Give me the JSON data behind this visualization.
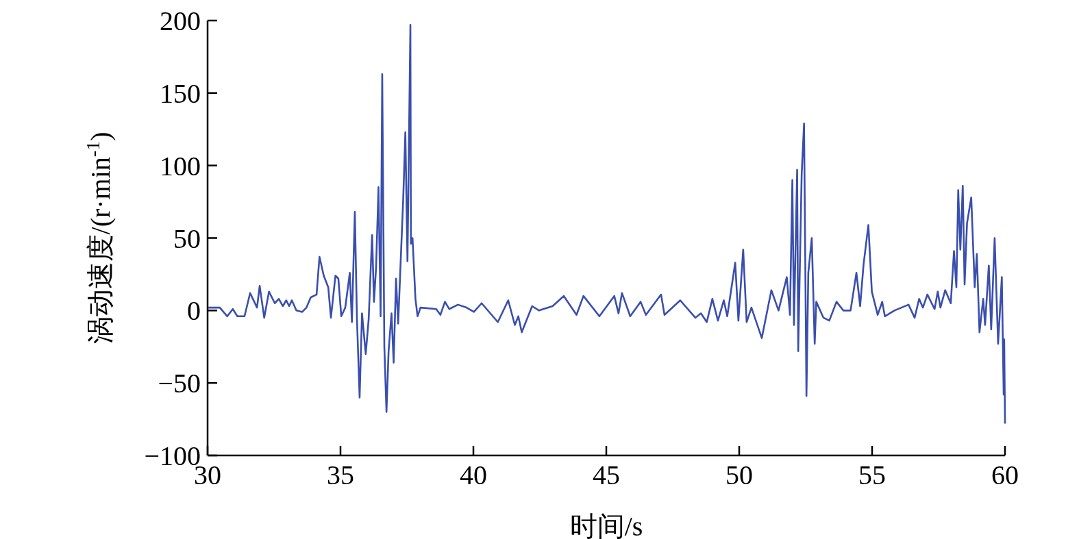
{
  "chart_data": {
    "type": "line",
    "xlabel": "时间/s",
    "ylabel": "涡动速度/(r·min$^{-1}$)",
    "xlim": [
      30,
      60
    ],
    "xticks": [
      30,
      35,
      40,
      45,
      50,
      55,
      60
    ],
    "ylim": [
      -100,
      200
    ],
    "yticks": [
      -100,
      -50,
      0,
      50,
      100,
      150,
      200
    ],
    "series": [
      {
        "color": "#3a4fad",
        "x": [
          30.03,
          30.46,
          30.74,
          30.95,
          31.12,
          31.39,
          31.6,
          31.86,
          31.96,
          32.13,
          32.31,
          32.53,
          32.68,
          32.83,
          32.96,
          33.07,
          33.17,
          33.34,
          33.56,
          33.72,
          33.88,
          34.1,
          34.21,
          34.37,
          34.54,
          34.64,
          34.81,
          34.92,
          35.03,
          35.18,
          35.35,
          35.43,
          35.54,
          35.62,
          35.72,
          35.81,
          35.95,
          36.06,
          36.19,
          36.26,
          36.34,
          36.43,
          36.51,
          36.57,
          36.65,
          36.73,
          36.81,
          36.92,
          37.0,
          37.09,
          37.17,
          37.36,
          37.44,
          37.52,
          37.63,
          37.65,
          37.71,
          37.82,
          37.9,
          38.01,
          38.6,
          38.76,
          38.93,
          39.09,
          39.42,
          39.74,
          40.02,
          40.31,
          40.92,
          41.31,
          41.56,
          41.69,
          41.82,
          42.21,
          42.47,
          42.98,
          43.4,
          43.88,
          44.14,
          44.74,
          45.3,
          45.46,
          45.59,
          45.9,
          46.29,
          46.49,
          47.06,
          47.19,
          47.78,
          48.35,
          48.56,
          48.78,
          48.99,
          49.2,
          49.42,
          49.55,
          49.85,
          49.97,
          50.15,
          50.28,
          50.46,
          50.85,
          51.21,
          51.48,
          51.79,
          51.91,
          52.0,
          52.06,
          52.18,
          52.22,
          52.35,
          52.44,
          52.53,
          52.6,
          52.73,
          52.84,
          52.9,
          53.17,
          53.39,
          53.66,
          53.92,
          54.19,
          54.41,
          54.55,
          54.68,
          54.86,
          54.99,
          55.21,
          55.38,
          55.48,
          55.84,
          56.37,
          56.6,
          56.77,
          56.91,
          57.08,
          57.35,
          57.47,
          57.57,
          57.75,
          57.96,
          58.08,
          58.17,
          58.24,
          58.32,
          58.41,
          58.48,
          58.57,
          58.73,
          58.86,
          58.94,
          59.04,
          59.18,
          59.25,
          59.39,
          59.48,
          59.61,
          59.74,
          59.88,
          59.95,
          59.97,
          60.0
        ],
        "values": [
          2,
          2,
          -4,
          1,
          -4,
          -4,
          12,
          2,
          17,
          -5,
          13,
          5,
          8,
          3,
          7,
          3,
          7,
          0,
          -1,
          2,
          9,
          11,
          37,
          24,
          16,
          -5,
          24,
          22,
          -4,
          2,
          26,
          -8,
          68,
          -6,
          -60,
          -2,
          -30,
          -6,
          52,
          6,
          30,
          85,
          -4,
          163,
          -25,
          -70,
          -28,
          -2,
          -36,
          22,
          -9,
          77,
          123,
          34,
          197,
          46,
          50,
          8,
          -4,
          2,
          1,
          -3,
          6,
          1,
          4,
          2,
          -1,
          5,
          -8,
          7,
          -10,
          -4,
          -15,
          3,
          0,
          3,
          10,
          -3,
          10,
          -4,
          10,
          -2,
          12,
          -4,
          6,
          -3,
          11,
          -3,
          7,
          -5,
          -2,
          -8,
          8,
          -7,
          7,
          -4,
          33,
          -7,
          42,
          -8,
          2,
          -19,
          14,
          0,
          23,
          -3,
          90,
          -10,
          97,
          -28,
          94,
          129,
          -59,
          26,
          50,
          -23,
          6,
          -5,
          -7,
          6,
          0,
          0,
          26,
          3,
          32,
          59,
          13,
          -3,
          6,
          -4,
          0,
          4,
          -5,
          8,
          2,
          11,
          1,
          13,
          2,
          14,
          5,
          41,
          16,
          83,
          42,
          86,
          18,
          60,
          78,
          16,
          39,
          -15,
          8,
          -10,
          31,
          -13,
          50,
          -23,
          23,
          -58,
          -20,
          -78
        ]
      }
    ]
  }
}
